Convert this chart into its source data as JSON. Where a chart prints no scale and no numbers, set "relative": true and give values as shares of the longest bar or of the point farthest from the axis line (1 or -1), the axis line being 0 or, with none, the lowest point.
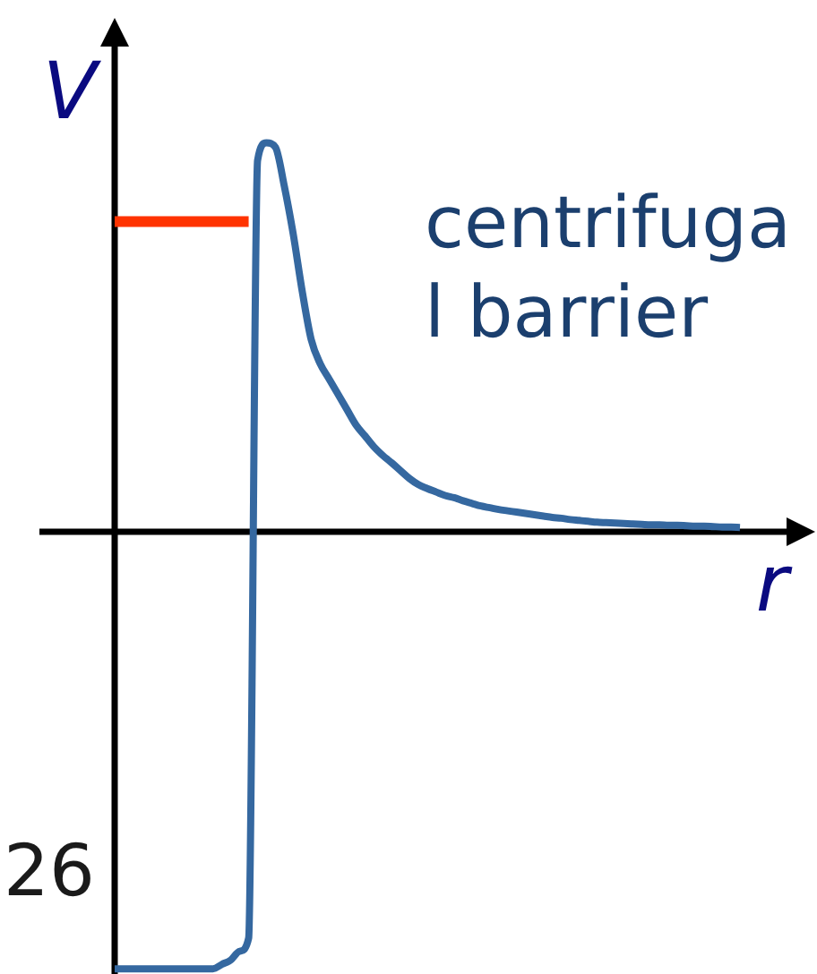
{
  "chart_data": {
    "type": "line",
    "relative": true,
    "xlabel": "r",
    "ylabel": "V",
    "annotations": [
      "centrifugal barrier",
      "26"
    ],
    "marker": "none",
    "categories": [
      null,
      null,
      null,
      null,
      null,
      null,
      null,
      null,
      null,
      null,
      null,
      null,
      null,
      null,
      null,
      null,
      null,
      null,
      null,
      null,
      null,
      null,
      null,
      null,
      null,
      null,
      null,
      null,
      null,
      null,
      null,
      null,
      null,
      null,
      null,
      null,
      null,
      null,
      null,
      null,
      null,
      null,
      null,
      null,
      null,
      null,
      null,
      null,
      null,
      null,
      null,
      null,
      null,
      null,
      null,
      null,
      null,
      null,
      null,
      null,
      null,
      null,
      null,
      null,
      null,
      null,
      null,
      null,
      null,
      null,
      null
    ],
    "series": [
      {
        "color": "#3568a0",
        "values": [
          -1,
          -1,
          -1,
          -1,
          -1,
          -1,
          -1,
          -1,
          -1,
          -1,
          -1,
          -1,
          -0.99,
          -0.98,
          -0.96,
          -0.93,
          0.85,
          0.89,
          0.88,
          0.79,
          0.68,
          0.55,
          0.44,
          0.385,
          0.35,
          0.315,
          0.28,
          0.245,
          0.22,
          0.195,
          0.175,
          0.158,
          0.14,
          0.122,
          0.108,
          0.099,
          0.091,
          0.083,
          0.078,
          0.071,
          0.065,
          0.059,
          0.055,
          0.051,
          0.048,
          0.045,
          0.042,
          0.039,
          0.036,
          0.033,
          0.031,
          0.028,
          0.026,
          0.024,
          0.022,
          0.021,
          0.02,
          0.019,
          0.018,
          0.017,
          0.016,
          0.016,
          0.015,
          0.015,
          0.014,
          0.013,
          0.013,
          0.012,
          0.011,
          0.011,
          0.01
        ]
      },
      {
        "color": "#ff3300",
        "values": [
          0.71,
          0.71,
          0.71,
          0.71,
          0.71,
          0.71,
          0.71,
          0.71,
          0.71,
          0.71,
          0.71,
          0.71,
          0.71,
          0.71,
          0.71,
          0.71,
          null,
          null,
          null,
          null,
          null,
          null,
          null,
          null,
          null,
          null,
          null,
          null,
          null,
          null,
          null,
          null,
          null,
          null,
          null,
          null,
          null,
          null,
          null,
          null,
          null,
          null,
          null,
          null,
          null,
          null,
          null,
          null,
          null,
          null,
          null,
          null,
          null,
          null,
          null,
          null,
          null,
          null,
          null,
          null,
          null,
          null,
          null,
          null,
          null,
          null,
          null,
          null,
          null,
          null,
          null
        ]
      }
    ]
  }
}
